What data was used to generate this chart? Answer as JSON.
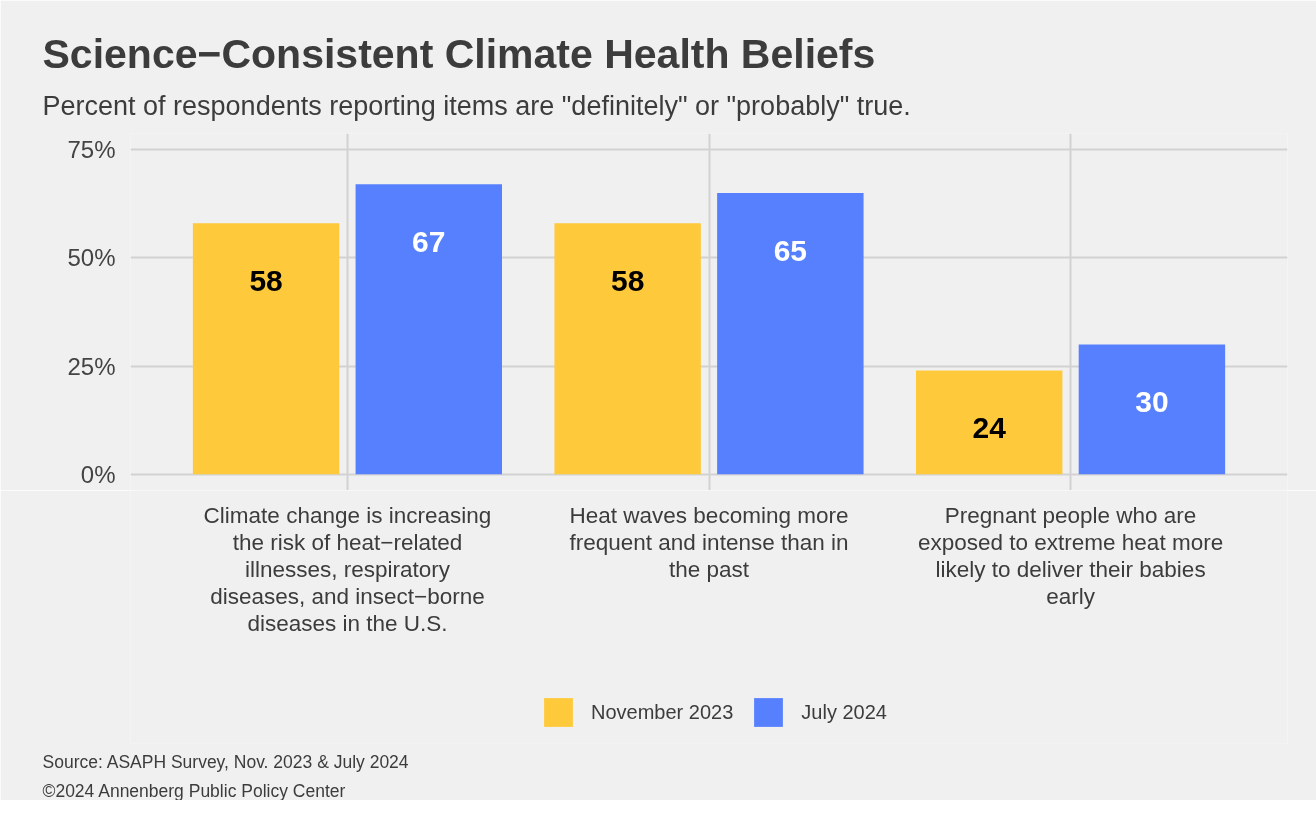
{
  "chart_data": {
    "type": "bar",
    "title": "Science−Consistent Climate Health Beliefs",
    "subtitle": "Percent of respondents reporting items are \"definitely\" or \"probably\" true.",
    "categories": [
      "Climate change is increasing the risk of heat−related illnesses, respiratory diseases, and insect−borne diseases in the U.S.",
      "Heat waves becoming more frequent and intense than in the past",
      "Pregnant people who are exposed to extreme heat more likely to deliver their babies early"
    ],
    "series": [
      {
        "name": "November 2023",
        "color": "#fec93a",
        "values": [
          58,
          58,
          24
        ]
      },
      {
        "name": "July 2024",
        "color": "#5680fe",
        "values": [
          67,
          65,
          30
        ]
      }
    ],
    "ylim": [
      -3.75,
      78.75
    ],
    "yticks": [
      {
        "value": 0,
        "label": "0%"
      },
      {
        "value": 25,
        "label": "25%"
      },
      {
        "value": 50,
        "label": "50%"
      },
      {
        "value": 75,
        "label": "75%"
      }
    ],
    "grid": true,
    "legend": "bottom",
    "data_labels": true,
    "annotations": [
      "Source: ASAPH Survey, Nov. 2023 & July 2024",
      "©2024 Annenberg Public Policy Center"
    ]
  }
}
